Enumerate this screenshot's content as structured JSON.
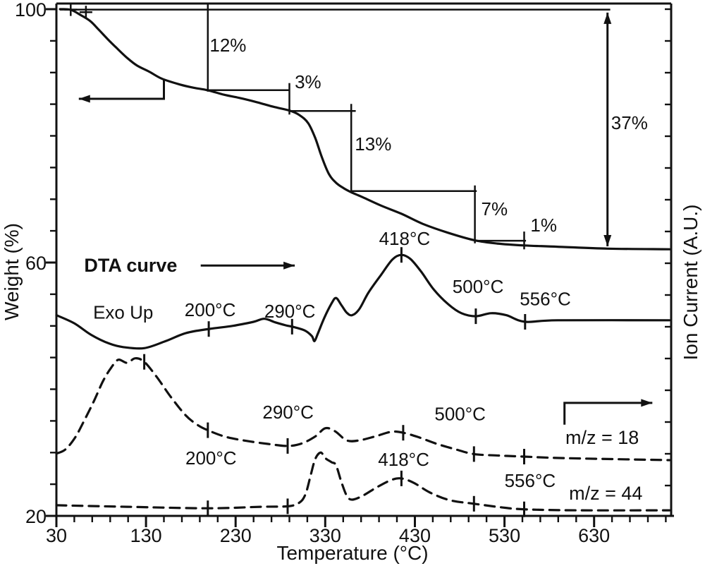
{
  "figure": {
    "background": "#ffffff",
    "ink": "#111111"
  },
  "chart_data": {
    "type": "line",
    "title": "",
    "xlabel": "Temperature (°C)",
    "ylabel_left": "Weight (%)",
    "ylabel_right": "Ion Current (A.U.)",
    "xlim": [
      30,
      716
    ],
    "x_ticks": [
      30,
      130,
      230,
      330,
      430,
      530,
      630
    ],
    "x_minor_step": 20,
    "left_axis": {
      "label": "Weight (%)",
      "lim": [
        20,
        100
      ],
      "ticks": [
        100,
        60,
        20
      ],
      "minor_step": 5
    },
    "right_axis": {
      "label": "Ion Current (A.U.)",
      "unit": "arbitrary units",
      "lim": [
        0,
        101.1
      ]
    },
    "weight_loss_steps": {
      "labels": [
        "12%",
        "3%",
        "13%",
        "7%",
        "1%"
      ],
      "values_percent": [
        12,
        3,
        13,
        7,
        1
      ],
      "total_label": "37%",
      "total_percent": 37
    },
    "marked_temperatures_c": [
      200,
      290,
      418,
      500,
      556
    ],
    "series": [
      {
        "name": "TGA weight",
        "style": "solid",
        "axis": "left",
        "unit": "wt%",
        "marks": [],
        "points": [
          [
            34,
            100
          ],
          [
            46,
            99.9
          ],
          [
            58,
            99
          ],
          [
            68,
            98.1
          ],
          [
            77,
            96.8
          ],
          [
            87,
            95.3
          ],
          [
            97,
            93.9
          ],
          [
            109,
            92.3
          ],
          [
            120,
            91.1
          ],
          [
            134,
            90.1
          ],
          [
            148,
            89
          ],
          [
            168,
            88.1
          ],
          [
            183,
            87.6
          ],
          [
            199,
            87.2
          ],
          [
            217,
            86.5
          ],
          [
            234,
            86
          ],
          [
            254,
            85.3
          ],
          [
            272,
            84.6
          ],
          [
            290,
            84
          ],
          [
            301,
            83.3
          ],
          [
            311,
            82
          ],
          [
            319,
            79.6
          ],
          [
            326,
            76.7
          ],
          [
            334,
            74
          ],
          [
            342,
            72.6
          ],
          [
            351,
            71.7
          ],
          [
            359,
            71.1
          ],
          [
            372,
            70.3
          ],
          [
            392,
            69
          ],
          [
            415,
            67.7
          ],
          [
            439,
            66.1
          ],
          [
            467,
            64.7
          ],
          [
            497,
            63.5
          ],
          [
            522,
            63
          ],
          [
            552,
            62.7
          ],
          [
            589,
            62.5
          ],
          [
            645,
            62.2
          ],
          [
            714,
            62.1
          ]
        ]
      },
      {
        "name": "DTA",
        "style": "solid",
        "axis": "right",
        "unit": "au",
        "marks": [
          200,
          293,
          415,
          498,
          553
        ],
        "points": [
          [
            30,
            39.6
          ],
          [
            50,
            38
          ],
          [
            69,
            35.7
          ],
          [
            89,
            34
          ],
          [
            105,
            33.3
          ],
          [
            128,
            33.1
          ],
          [
            152,
            34.5
          ],
          [
            175,
            36.1
          ],
          [
            201,
            36.9
          ],
          [
            227,
            37.5
          ],
          [
            250,
            38.3
          ],
          [
            262,
            38.9
          ],
          [
            274,
            38.2
          ],
          [
            286,
            37.6
          ],
          [
            294,
            37.3
          ],
          [
            307,
            36.6
          ],
          [
            315,
            35.5
          ],
          [
            318,
            34.5
          ],
          [
            322,
            36.1
          ],
          [
            329,
            39.1
          ],
          [
            337,
            41.9
          ],
          [
            342,
            43
          ],
          [
            348,
            41.6
          ],
          [
            354,
            40.1
          ],
          [
            360,
            39.6
          ],
          [
            368,
            40.8
          ],
          [
            378,
            44
          ],
          [
            392,
            47.5
          ],
          [
            405,
            50.6
          ],
          [
            415,
            51.5
          ],
          [
            425,
            50.7
          ],
          [
            437,
            48.2
          ],
          [
            451,
            44.7
          ],
          [
            467,
            41.8
          ],
          [
            482,
            40
          ],
          [
            498,
            39.4
          ],
          [
            515,
            40
          ],
          [
            532,
            39.6
          ],
          [
            553,
            38.3
          ],
          [
            589,
            38.6
          ],
          [
            714,
            38.6
          ]
        ]
      },
      {
        "name": "m/z = 18",
        "style": "dashed",
        "axis": "right",
        "unit": "au",
        "marks": [
          128,
          199,
          288,
          417,
          496,
          552
        ],
        "points": [
          [
            30,
            12.3
          ],
          [
            40,
            13.1
          ],
          [
            51,
            15.5
          ],
          [
            61,
            18.8
          ],
          [
            72,
            22.7
          ],
          [
            82,
            26.6
          ],
          [
            91,
            29.2
          ],
          [
            99,
            30.8
          ],
          [
            109,
            30.2
          ],
          [
            118,
            31.1
          ],
          [
            128,
            30.4
          ],
          [
            142,
            27.4
          ],
          [
            158,
            23.4
          ],
          [
            174,
            19.9
          ],
          [
            187,
            18
          ],
          [
            199,
            16.9
          ],
          [
            219,
            15.6
          ],
          [
            242,
            14.8
          ],
          [
            266,
            14.2
          ],
          [
            288,
            13.8
          ],
          [
            304,
            14.3
          ],
          [
            319,
            15.7
          ],
          [
            330,
            17.3
          ],
          [
            341,
            16.7
          ],
          [
            354,
            14.9
          ],
          [
            368,
            14.9
          ],
          [
            386,
            15.7
          ],
          [
            404,
            16.6
          ],
          [
            417,
            16.4
          ],
          [
            433,
            15.6
          ],
          [
            453,
            14.3
          ],
          [
            474,
            13.2
          ],
          [
            496,
            12.2
          ],
          [
            524,
            11.9
          ],
          [
            552,
            11.7
          ],
          [
            596,
            11.4
          ],
          [
            714,
            11
          ]
        ]
      },
      {
        "name": "m/z = 44",
        "style": "dashed",
        "axis": "right",
        "unit": "au",
        "marks": [
          199,
          288,
          415,
          496,
          552
        ],
        "points": [
          [
            30,
            2.1
          ],
          [
            109,
            1.8
          ],
          [
            199,
            1.5
          ],
          [
            258,
            1.8
          ],
          [
            288,
            1.9
          ],
          [
            301,
            2.6
          ],
          [
            308,
            4.3
          ],
          [
            314,
            8.2
          ],
          [
            319,
            11.3
          ],
          [
            325,
            12.5
          ],
          [
            330,
            11.4
          ],
          [
            337,
            10.6
          ],
          [
            342,
            10
          ],
          [
            348,
            6.7
          ],
          [
            354,
            4
          ],
          [
            360,
            3.2
          ],
          [
            372,
            4
          ],
          [
            388,
            5.7
          ],
          [
            404,
            7.1
          ],
          [
            415,
            7.4
          ],
          [
            429,
            6.5
          ],
          [
            447,
            4.6
          ],
          [
            469,
            3.1
          ],
          [
            496,
            2.4
          ],
          [
            526,
            1.7
          ],
          [
            552,
            1.3
          ],
          [
            612,
            1.1
          ],
          [
            714,
            1.1
          ]
        ]
      }
    ],
    "annotations": [
      {
        "text": "12%",
        "T": 201,
        "au": 91.6
      },
      {
        "text": "3%",
        "T": 296,
        "au": 84.4
      },
      {
        "text": "13%",
        "T": 363,
        "au": 72.1
      },
      {
        "text": "7%",
        "T": 504,
        "au": 59.3
      },
      {
        "text": "1%",
        "T": 559,
        "au": 56.1
      },
      {
        "text": "37%",
        "T": 649,
        "au": 76.3
      },
      {
        "text": "DTA curve",
        "T": 61,
        "au": 48.2,
        "bold": true,
        "size": 27
      },
      {
        "text": "Exo Up",
        "T": 71,
        "au": 38.9
      },
      {
        "text": "200°C",
        "T": 173,
        "au": 39.4
      },
      {
        "text": "290°C",
        "T": 262,
        "au": 39.1
      },
      {
        "text": "418°C",
        "T": 390,
        "au": 53.5
      },
      {
        "text": "500°C",
        "T": 472,
        "au": 44.0
      },
      {
        "text": "556°C",
        "T": 547,
        "au": 41.6
      },
      {
        "text": "290°C",
        "T": 260,
        "au": 19.2
      },
      {
        "text": "200°C",
        "T": 174,
        "au": 10.2
      },
      {
        "text": "500°C",
        "T": 452,
        "au": 18.9
      },
      {
        "text": "418°C",
        "T": 389,
        "au": 9.9
      },
      {
        "text": "556°C",
        "T": 530,
        "au": 5.7
      },
      {
        "text": "m/z = 18",
        "T": 598,
        "au": 14.2,
        "size": 27
      },
      {
        "text": "m/z = 44",
        "T": 602,
        "au": 3.2,
        "size": 27
      }
    ],
    "guides": [
      {
        "type": "line",
        "pts": [
          [
            34,
            99.9
          ],
          [
            648,
            99.9
          ]
        ]
      },
      {
        "type": "line",
        "pts": [
          [
            199,
            101.1
          ],
          [
            199,
            83.7
          ]
        ]
      },
      {
        "type": "line",
        "pts": [
          [
            199,
            84.0
          ],
          [
            290,
            84.0
          ]
        ]
      },
      {
        "type": "line",
        "pts": [
          [
            290,
            85.4
          ],
          [
            290,
            79.2
          ]
        ]
      },
      {
        "type": "line",
        "pts": [
          [
            290,
            79.9
          ],
          [
            364,
            79.9
          ]
        ]
      },
      {
        "type": "line",
        "pts": [
          [
            359,
            81.3
          ],
          [
            359,
            63.8
          ]
        ]
      },
      {
        "type": "line",
        "pts": [
          [
            359,
            64.1
          ],
          [
            499,
            64.1
          ]
        ]
      },
      {
        "type": "line",
        "pts": [
          [
            497,
            65.2
          ],
          [
            497,
            53.8
          ]
        ]
      },
      {
        "type": "line",
        "pts": [
          [
            497,
            54.3
          ],
          [
            554,
            54.3
          ]
        ]
      },
      {
        "type": "line",
        "pts": [
          [
            552,
            56.1
          ],
          [
            552,
            52.6
          ]
        ]
      },
      {
        "type": "cross",
        "at": [
          46,
          99.9
        ]
      },
      {
        "type": "cross",
        "at": [
          63,
          99.4
        ]
      }
    ],
    "arrows": [
      {
        "type": "double",
        "name": "total-loss-arrow",
        "pts": [
          [
            645,
            99.3
          ],
          [
            645,
            53.2
          ]
        ]
      },
      {
        "type": "poly",
        "name": "weight-axis-arrow",
        "pts": [
          [
            150,
            86.2
          ],
          [
            150,
            82.3
          ],
          [
            55,
            82.3
          ]
        ]
      },
      {
        "type": "poly",
        "name": "dta-axis-arrow",
        "pts": [
          [
            191,
            49.4
          ],
          [
            296,
            49.4
          ]
        ]
      },
      {
        "type": "poly",
        "name": "ion-current-axis-arrow",
        "pts": [
          [
            597,
            18.0
          ],
          [
            597,
            22.3
          ],
          [
            695,
            22.3
          ]
        ]
      }
    ]
  }
}
